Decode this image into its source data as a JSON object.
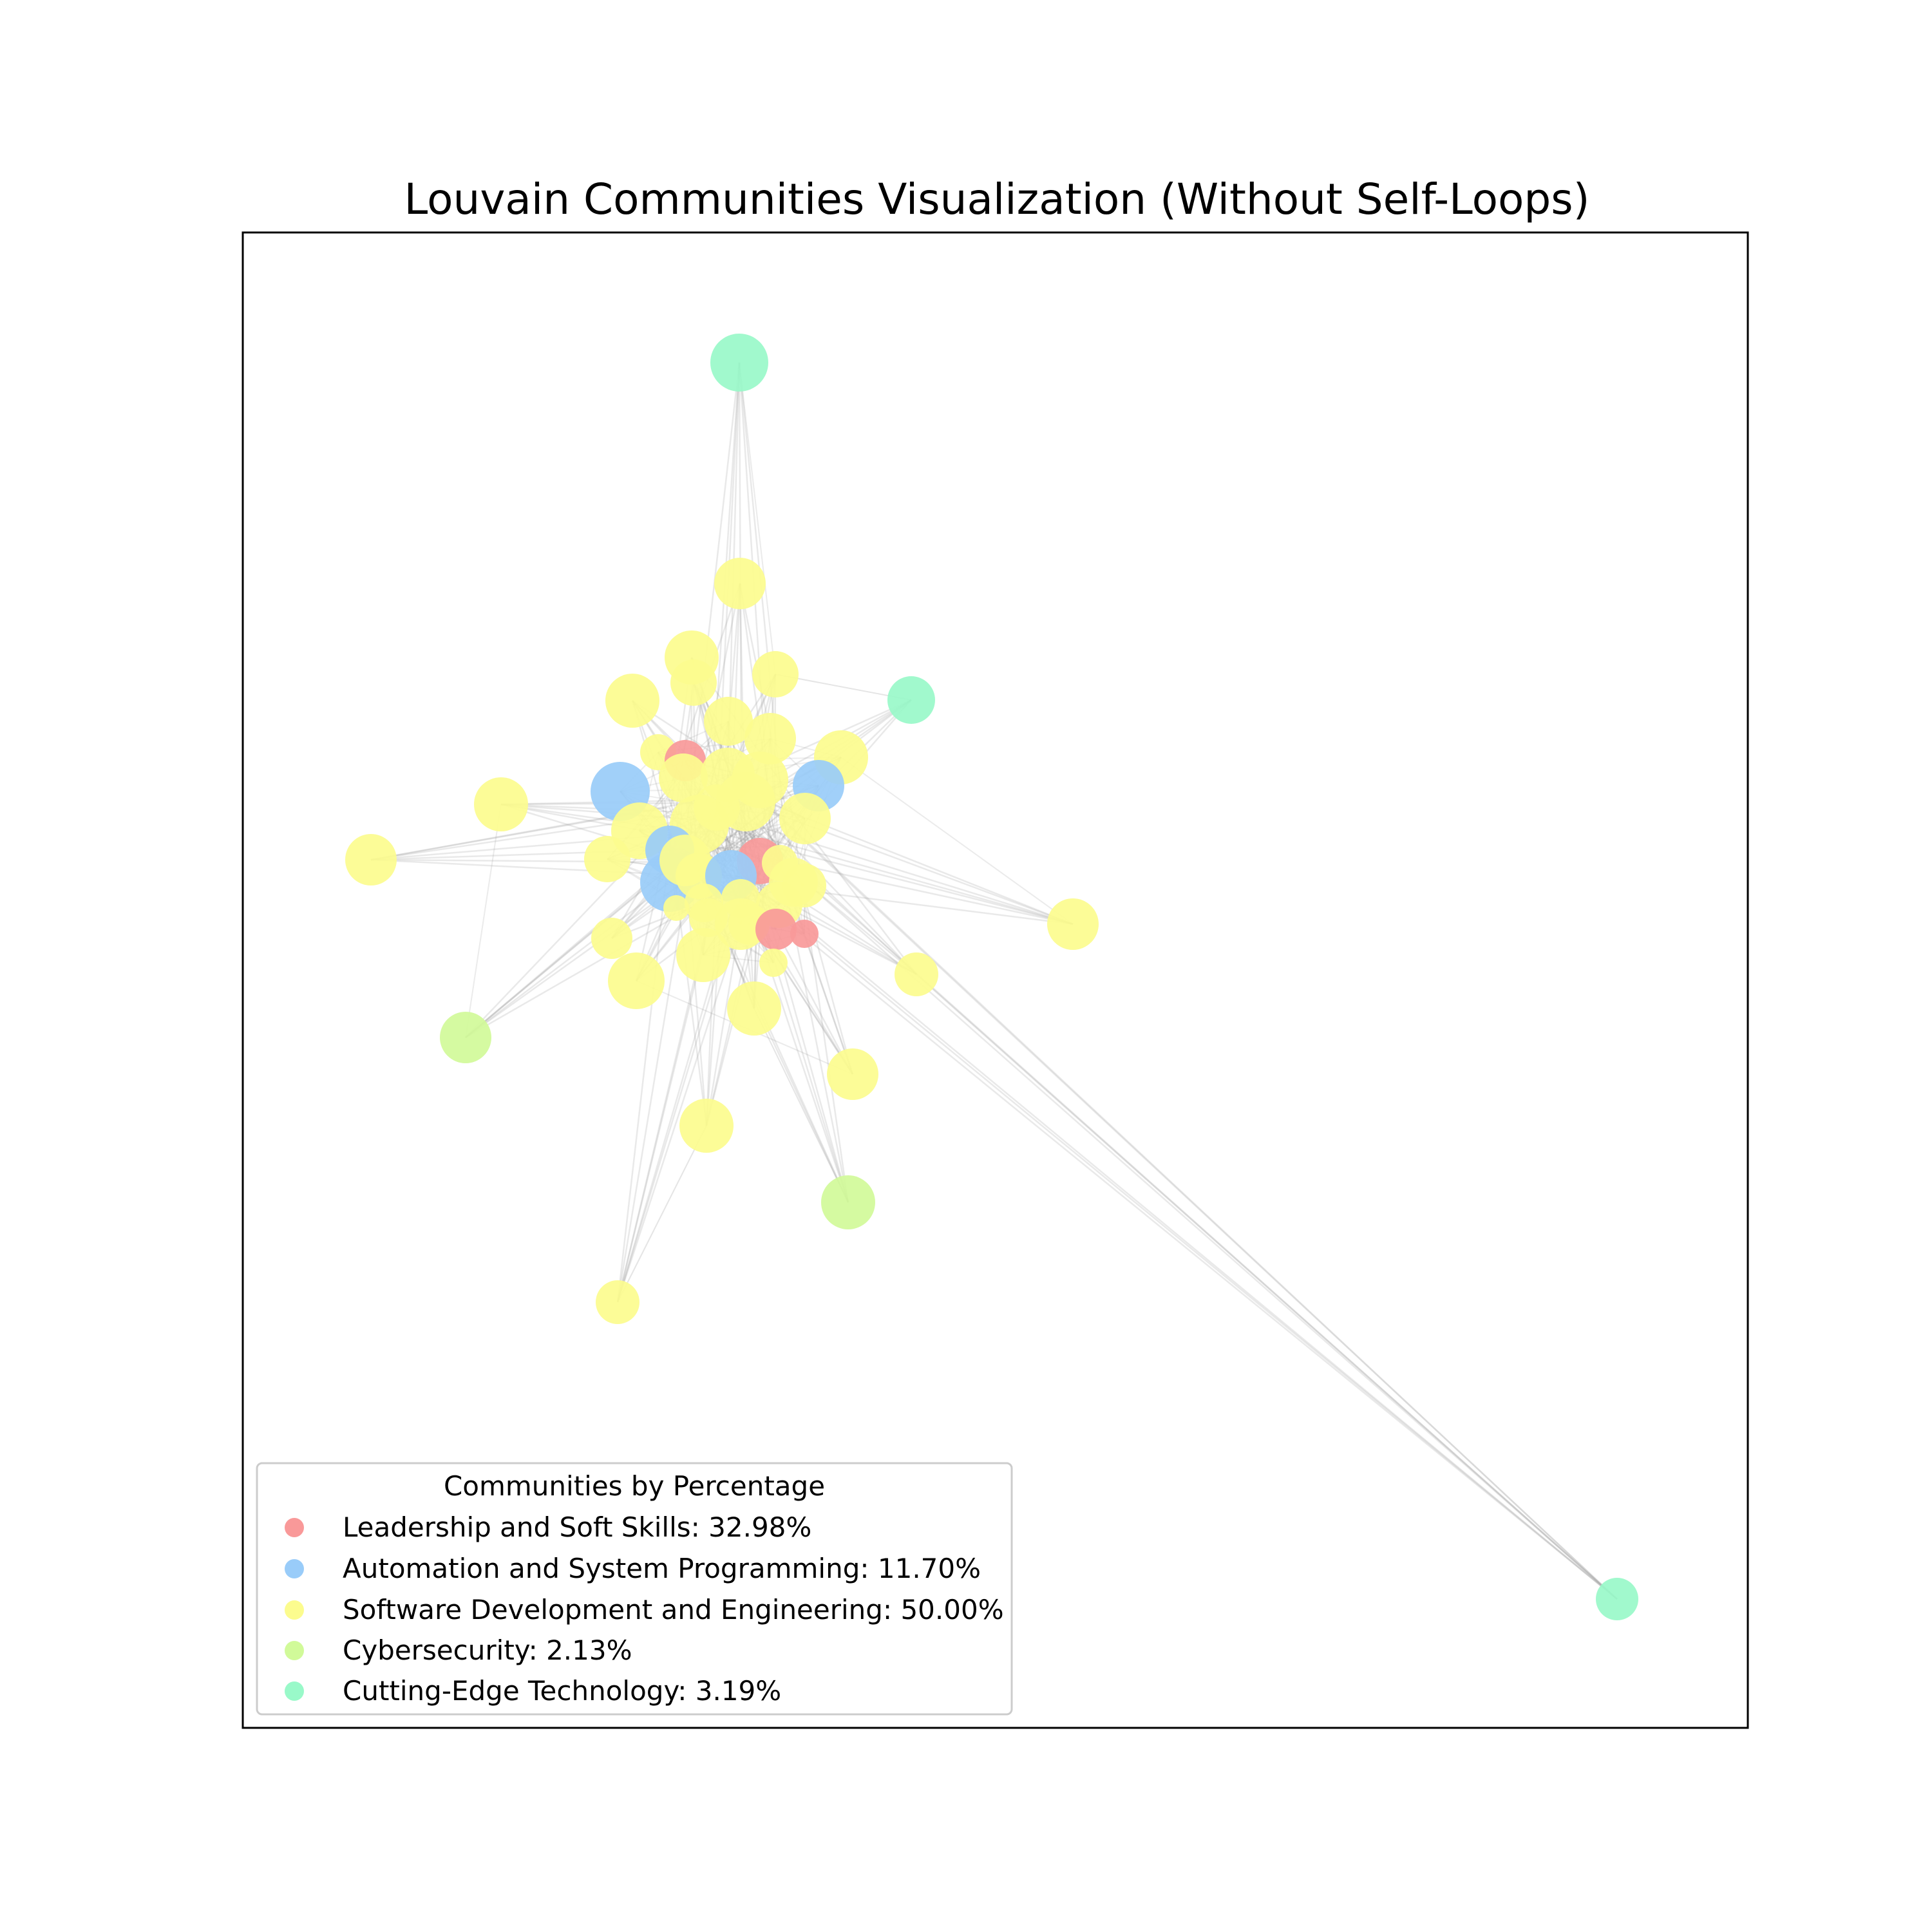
{
  "title": "Louvain Communities Visualization (Without Self-Loops)",
  "legend": {
    "title": "Communities by Percentage",
    "entries": [
      {
        "label": "Leadership and Soft Skills: 32.98%",
        "color": "#f99999"
      },
      {
        "label": "Automation and System Programming: 11.70%",
        "color": "#99ccf9"
      },
      {
        "label": "Software Development and Engineering: 50.00%",
        "color": "#fcfc8e"
      },
      {
        "label": "Cybersecurity: 2.13%",
        "color": "#d1fa99"
      },
      {
        "label": "Cutting-Edge Technology: 3.19%",
        "color": "#99f9c9"
      }
    ]
  },
  "colors": {
    "leadership": "#f99999",
    "automation": "#99ccf9",
    "software": "#fcfc8e",
    "cyber": "#d1fa99",
    "cutting_edge": "#99f9c9",
    "edge": "#999999"
  }
}
